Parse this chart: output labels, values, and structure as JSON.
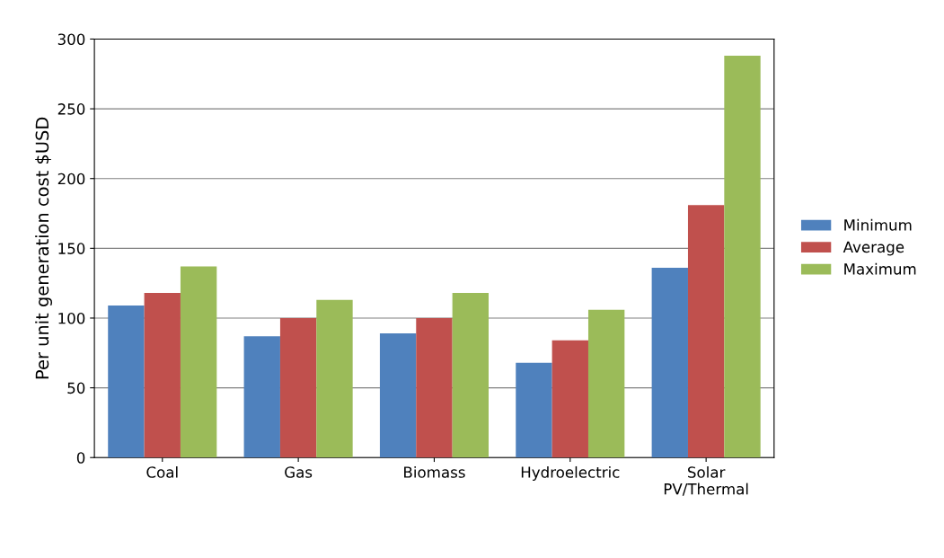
{
  "chart_data": {
    "type": "bar",
    "ylabel": "Per unit generation cost $USD",
    "categories": [
      "Coal",
      "Gas",
      "Biomass",
      "Hydroelectric",
      "Solar\nPV/Thermal"
    ],
    "series": [
      {
        "name": "Minimum",
        "color": "#4f81bd",
        "values": [
          109,
          87,
          89,
          68,
          136
        ]
      },
      {
        "name": "Average",
        "color": "#c0504d",
        "values": [
          118,
          100,
          100,
          84,
          181
        ]
      },
      {
        "name": "Maximum",
        "color": "#9bbb59",
        "values": [
          137,
          113,
          118,
          106,
          288
        ]
      }
    ],
    "ylim": [
      0,
      300
    ],
    "yticks": [
      0,
      50,
      100,
      150,
      200,
      250,
      300
    ],
    "grid": "y",
    "legend": "right"
  }
}
